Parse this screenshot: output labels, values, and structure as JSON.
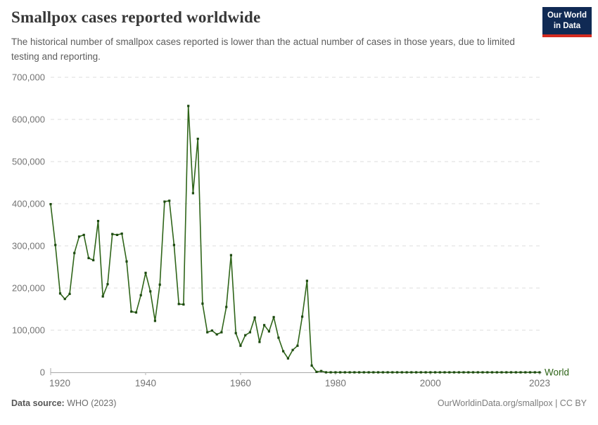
{
  "header": {
    "title": "Smallpox cases reported worldwide",
    "subtitle": "The historical number of smallpox cases reported is lower than the actual number of cases in those years, due to limited testing and reporting.",
    "logo": {
      "line1": "Our World",
      "line2": "in Data",
      "bg_color": "#102a54",
      "accent_color": "#d42b20"
    }
  },
  "chart_data": {
    "type": "line",
    "title": "Smallpox cases reported worldwide",
    "xlabel": "",
    "ylabel": "",
    "xlim": [
      1920,
      2023
    ],
    "ylim": [
      0,
      700000
    ],
    "grid": "horizontal-dashed",
    "legend": "end-of-line-label",
    "x_ticks": [
      1920,
      1940,
      1960,
      1980,
      2000,
      2023
    ],
    "y_ticks": [
      0,
      100000,
      200000,
      300000,
      400000,
      500000,
      600000,
      700000
    ],
    "series": [
      {
        "name": "World",
        "color": "#2f6519",
        "marker_color": "#1d4a10",
        "years": [
          1920,
          1921,
          1922,
          1923,
          1924,
          1925,
          1926,
          1927,
          1928,
          1929,
          1930,
          1931,
          1932,
          1933,
          1934,
          1935,
          1936,
          1937,
          1938,
          1939,
          1940,
          1941,
          1942,
          1943,
          1944,
          1945,
          1946,
          1947,
          1948,
          1949,
          1950,
          1951,
          1952,
          1953,
          1954,
          1955,
          1956,
          1957,
          1958,
          1959,
          1960,
          1961,
          1962,
          1963,
          1964,
          1965,
          1966,
          1967,
          1968,
          1969,
          1970,
          1971,
          1972,
          1973,
          1974,
          1975,
          1976,
          1977,
          1978,
          1979,
          1980,
          1981,
          1982,
          1983,
          1984,
          1985,
          1986,
          1987,
          1988,
          1989,
          1990,
          1991,
          1992,
          1993,
          1994,
          1995,
          1996,
          1997,
          1998,
          1999,
          2000,
          2001,
          2002,
          2003,
          2004,
          2005,
          2006,
          2007,
          2008,
          2009,
          2010,
          2011,
          2012,
          2013,
          2014,
          2015,
          2016,
          2017,
          2018,
          2019,
          2020,
          2021,
          2022,
          2023
        ],
        "values": [
          399000,
          302000,
          187000,
          174000,
          186000,
          283000,
          322000,
          326000,
          271000,
          266000,
          359000,
          180000,
          209000,
          328000,
          326000,
          329000,
          263000,
          144000,
          142000,
          183000,
          236000,
          192000,
          122000,
          208000,
          405000,
          407000,
          302000,
          162000,
          161000,
          632000,
          425000,
          554000,
          163000,
          95000,
          99000,
          90000,
          95000,
          155000,
          278000,
          93000,
          63000,
          88000,
          95000,
          130000,
          72000,
          112000,
          97000,
          131000,
          82000,
          50000,
          33000,
          53000,
          63000,
          132000,
          217000,
          16000,
          1000,
          3000,
          0,
          0,
          0,
          0,
          0,
          0,
          0,
          0,
          0,
          0,
          0,
          0,
          0,
          0,
          0,
          0,
          0,
          0,
          0,
          0,
          0,
          0,
          0,
          0,
          0,
          0,
          0,
          0,
          0,
          0,
          0,
          0,
          0,
          0,
          0,
          0,
          0,
          0,
          0,
          0,
          0,
          0,
          0,
          0,
          0,
          0
        ]
      }
    ]
  },
  "footer": {
    "source_label": "Data source:",
    "source_value": "WHO (2023)",
    "attribution": "OurWorldinData.org/smallpox | CC BY"
  }
}
